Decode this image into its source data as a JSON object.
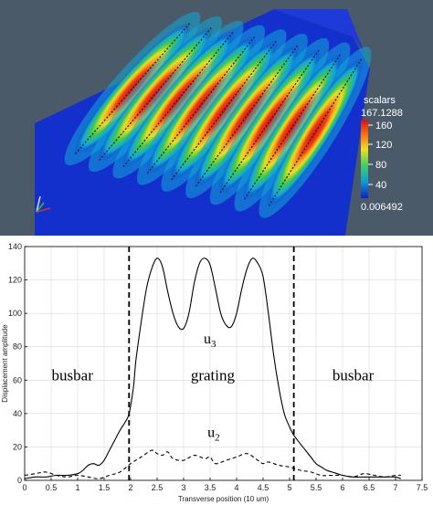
{
  "simulation": {
    "colorbar": {
      "title": "scalars",
      "max_label": "167.1288",
      "min_label": "0.006492",
      "tick_labels": [
        "160",
        "120",
        "80",
        "40"
      ],
      "colors": [
        "#d01010",
        "#ff6a10",
        "#f0e020",
        "#40d060",
        "#10a0d0",
        "#1020c8"
      ]
    },
    "fingers_count": 9,
    "background_color": "#4a5a68"
  },
  "chart_data": {
    "type": "line",
    "title": "",
    "xlabel": "Transverse position (10 um)",
    "ylabel": "Displacement amplitude",
    "xlim": [
      0,
      7.5
    ],
    "ylim": [
      0,
      140
    ],
    "xticks": [
      "0",
      "0.5",
      "1",
      "1.5",
      "2",
      "2.5",
      "3",
      "3.5",
      "4",
      "4.5",
      "5",
      "5.5",
      "6",
      "6.5",
      "7",
      "7.5"
    ],
    "yticks": [
      "0",
      "20",
      "40",
      "60",
      "80",
      "100",
      "120",
      "140"
    ],
    "grid": true,
    "boundaries_x": [
      1.97,
      5.08
    ],
    "region_labels": [
      "busbar",
      "grating",
      "busbar"
    ],
    "series": [
      {
        "name": "u3",
        "style": "solid",
        "x": [
          0,
          0.2,
          0.4,
          0.6,
          0.8,
          1.0,
          1.1,
          1.2,
          1.3,
          1.4,
          1.5,
          1.6,
          1.7,
          1.8,
          1.9,
          1.97,
          2.05,
          2.1,
          2.2,
          2.3,
          2.4,
          2.5,
          2.6,
          2.7,
          2.8,
          2.9,
          3.0,
          3.1,
          3.2,
          3.3,
          3.4,
          3.5,
          3.6,
          3.7,
          3.8,
          3.9,
          4.0,
          4.1,
          4.2,
          4.3,
          4.4,
          4.5,
          4.6,
          4.7,
          4.8,
          4.9,
          5.0,
          5.08,
          5.2,
          5.3,
          5.4,
          5.5,
          5.6,
          5.7,
          5.8,
          5.9,
          6.0,
          6.2,
          6.4,
          6.6,
          6.8,
          7.0,
          7.1
        ],
        "y": [
          1,
          2,
          2,
          3,
          3,
          4,
          6,
          9,
          10,
          9,
          12,
          18,
          24,
          30,
          35,
          40,
          55,
          72,
          95,
          115,
          127,
          133,
          128,
          113,
          100,
          92,
          91,
          100,
          118,
          130,
          133,
          129,
          115,
          100,
          93,
          92,
          100,
          115,
          127,
          133,
          130,
          122,
          100,
          75,
          55,
          40,
          32,
          27,
          22,
          18,
          14,
          10,
          8,
          6,
          5,
          4,
          3,
          2,
          2,
          2,
          2,
          2,
          1
        ]
      },
      {
        "name": "u2",
        "style": "dashed",
        "x": [
          0,
          0.2,
          0.4,
          0.6,
          0.8,
          1.0,
          1.2,
          1.4,
          1.6,
          1.8,
          2.0,
          2.2,
          2.4,
          2.5,
          2.6,
          2.7,
          2.8,
          3.0,
          3.2,
          3.4,
          3.5,
          3.6,
          3.8,
          4.0,
          4.2,
          4.4,
          4.5,
          4.6,
          4.8,
          5.0,
          5.2,
          5.4,
          5.6,
          5.8,
          6.0,
          6.2,
          6.4,
          6.6,
          6.8,
          7.0,
          7.1
        ],
        "y": [
          3,
          4,
          5,
          3,
          2,
          3,
          2,
          1,
          3,
          5,
          10,
          14,
          18,
          16,
          15,
          17,
          13,
          12,
          15,
          13,
          14,
          10,
          12,
          14,
          16,
          12,
          10,
          11,
          9,
          8,
          6,
          5,
          3,
          3,
          3,
          2,
          4,
          3,
          2,
          3,
          3
        ]
      }
    ]
  }
}
